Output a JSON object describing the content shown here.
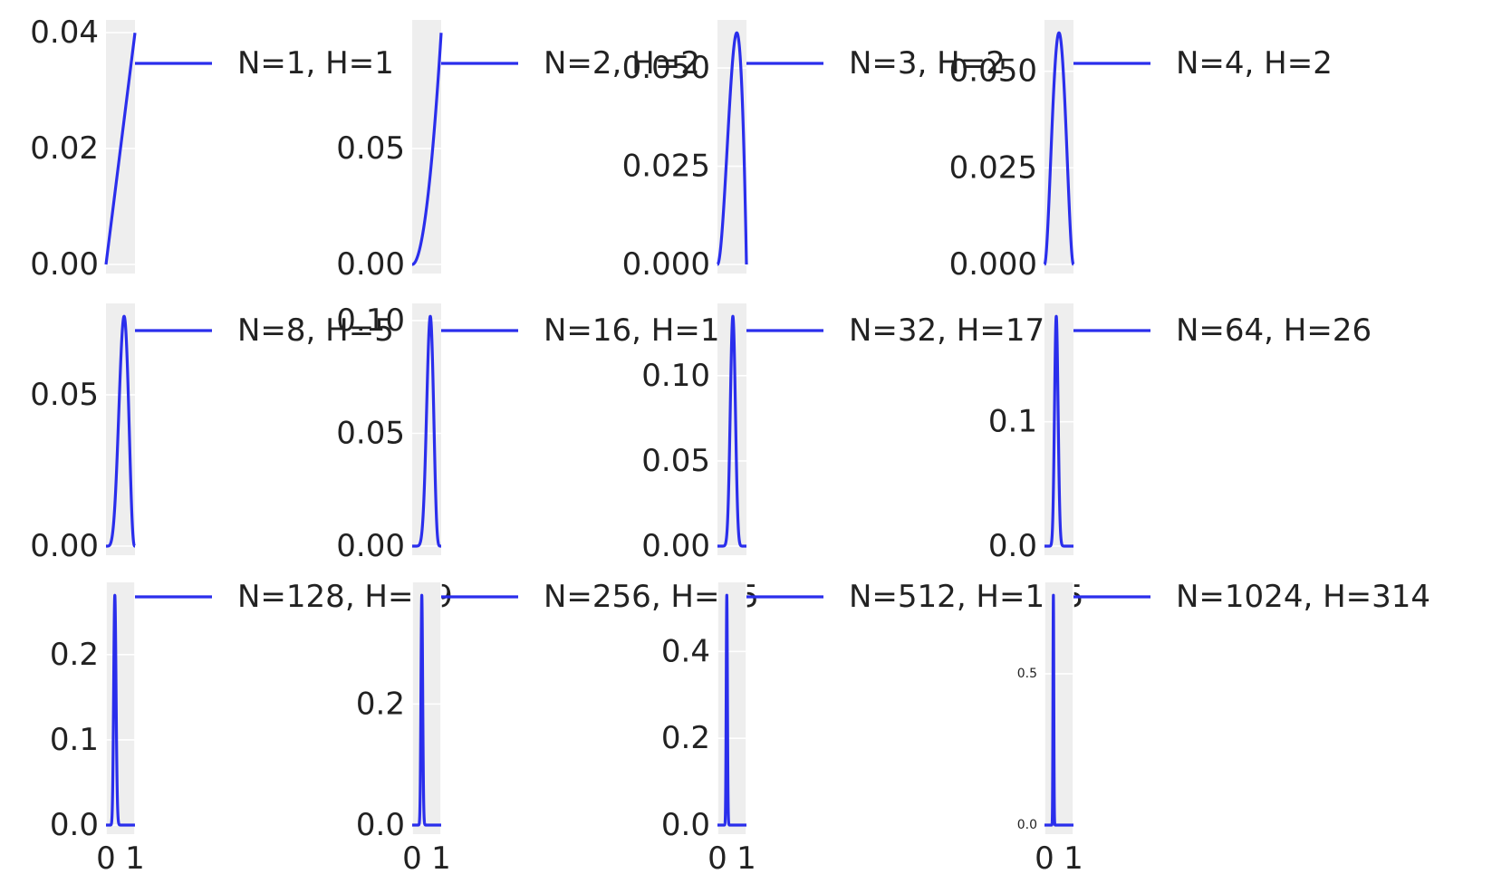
{
  "chart_data": [
    {
      "type": "line",
      "legend": "N=1, H=1",
      "yticks": [
        "0.00",
        "0.02",
        "0.04"
      ],
      "ylim": [
        0,
        0.04
      ],
      "xlim": [
        0,
        1
      ],
      "x_ticks_shown": [],
      "density": {
        "kind": "beta",
        "h": 1,
        "n": 1
      }
    },
    {
      "type": "line",
      "legend": "N=2, H=2",
      "yticks": [
        "0.00",
        "0.05"
      ],
      "ylim": [
        0,
        0.1
      ],
      "xlim": [
        0,
        1
      ],
      "x_ticks_shown": [],
      "density": {
        "kind": "beta",
        "h": 2,
        "n": 2
      }
    },
    {
      "type": "line",
      "legend": "N=3, H=2",
      "yticks": [
        "0.000",
        "0.025",
        "0.050"
      ],
      "ylim": [
        0,
        0.059
      ],
      "xlim": [
        0,
        1
      ],
      "x_ticks_shown": [],
      "density": {
        "kind": "beta",
        "h": 2,
        "n": 3
      }
    },
    {
      "type": "line",
      "legend": "N=4, H=2",
      "yticks": [
        "0.000",
        "0.025",
        "0.050"
      ],
      "ylim": [
        0,
        0.06
      ],
      "xlim": [
        0,
        1
      ],
      "x_ticks_shown": [],
      "density": {
        "kind": "beta",
        "h": 2,
        "n": 4
      }
    },
    {
      "type": "line",
      "legend": "N=8, H=5",
      "yticks": [
        "0.00",
        "0.05"
      ],
      "ylim": [
        0,
        0.076
      ],
      "xlim": [
        0,
        1
      ],
      "x_ticks_shown": [],
      "density": {
        "kind": "beta",
        "h": 5,
        "n": 8
      }
    },
    {
      "type": "line",
      "legend": "N=16, H=10",
      "yticks": [
        "0.00",
        "0.05",
        "0.10"
      ],
      "ylim": [
        0,
        0.102
      ],
      "xlim": [
        0,
        1
      ],
      "x_ticks_shown": [],
      "density": {
        "kind": "beta",
        "h": 10,
        "n": 16
      }
    },
    {
      "type": "line",
      "legend": "N=32, H=17",
      "yticks": [
        "0.00",
        "0.05",
        "0.10"
      ],
      "ylim": [
        0,
        0.135
      ],
      "xlim": [
        0,
        1
      ],
      "x_ticks_shown": [],
      "density": {
        "kind": "beta",
        "h": 17,
        "n": 32
      }
    },
    {
      "type": "line",
      "legend": "N=64, H=26",
      "yticks": [
        "0.0",
        "0.1"
      ],
      "ylim": [
        0,
        0.185
      ],
      "xlim": [
        0,
        1
      ],
      "x_ticks_shown": [],
      "density": {
        "kind": "beta",
        "h": 26,
        "n": 64
      }
    },
    {
      "type": "line",
      "legend": "N=128, H=39",
      "yticks": [
        "0.0",
        "0.1",
        "0.2"
      ],
      "ylim": [
        0,
        0.27
      ],
      "xlim": [
        0,
        1
      ],
      "x_ticks_shown": [
        "0",
        "1"
      ],
      "density": {
        "kind": "beta",
        "h": 39,
        "n": 128
      }
    },
    {
      "type": "line",
      "legend": "N=256, H=85",
      "yticks": [
        "0.0",
        "0.2"
      ],
      "ylim": [
        0,
        0.38
      ],
      "xlim": [
        0,
        1
      ],
      "x_ticks_shown": [
        "0",
        "1"
      ],
      "density": {
        "kind": "beta",
        "h": 85,
        "n": 256
      }
    },
    {
      "type": "line",
      "legend": "N=512, H=165",
      "yticks": [
        "0.0",
        "0.2",
        "0.4"
      ],
      "ylim": [
        0,
        0.53
      ],
      "xlim": [
        0,
        1
      ],
      "x_ticks_shown": [
        "0",
        "1"
      ],
      "density": {
        "kind": "beta",
        "h": 165,
        "n": 512
      }
    },
    {
      "type": "line",
      "legend": "N=1024, H=314",
      "yticks": [
        "0.0",
        "0.5"
      ],
      "ylim": [
        0,
        0.76
      ],
      "xlim": [
        0,
        1
      ],
      "x_ticks_shown": [
        "0",
        "1"
      ],
      "density": {
        "kind": "beta",
        "h": 314,
        "n": 1024
      }
    }
  ],
  "colors": {
    "line": "#2a2eec",
    "axes_bg": "#eeeeee",
    "grid": "#ffffff",
    "text": "#222222"
  }
}
